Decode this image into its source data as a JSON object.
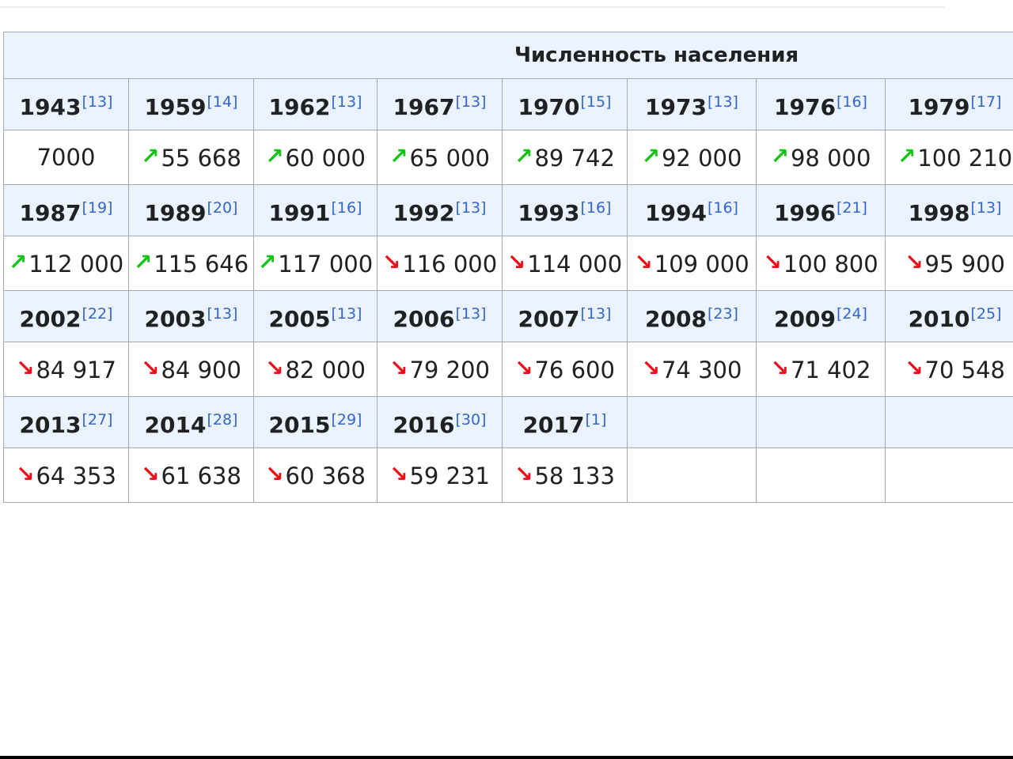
{
  "table_title": "Численность населения",
  "colors": {
    "up": "#14c414",
    "down": "#e8101b",
    "header_bg": "#eaf3ff",
    "ref": "#3366cc"
  },
  "rows": [
    {
      "years": [
        {
          "year": "1943",
          "ref": "[13]"
        },
        {
          "year": "1959",
          "ref": "[14]"
        },
        {
          "year": "1962",
          "ref": "[13]"
        },
        {
          "year": "1967",
          "ref": "[13]"
        },
        {
          "year": "1970",
          "ref": "[15]"
        },
        {
          "year": "1973",
          "ref": "[13]"
        },
        {
          "year": "1976",
          "ref": "[16]"
        },
        {
          "year": "1979",
          "ref": "[17]"
        }
      ],
      "values": [
        {
          "value": "7000",
          "trend": ""
        },
        {
          "value": "55 668",
          "trend": "up"
        },
        {
          "value": "60 000",
          "trend": "up"
        },
        {
          "value": "65 000",
          "trend": "up"
        },
        {
          "value": "89 742",
          "trend": "up"
        },
        {
          "value": "92 000",
          "trend": "up"
        },
        {
          "value": "98 000",
          "trend": "up"
        },
        {
          "value": "100 210",
          "trend": "up"
        }
      ]
    },
    {
      "years": [
        {
          "year": "1987",
          "ref": "[19]"
        },
        {
          "year": "1989",
          "ref": "[20]"
        },
        {
          "year": "1991",
          "ref": "[16]"
        },
        {
          "year": "1992",
          "ref": "[13]"
        },
        {
          "year": "1993",
          "ref": "[16]"
        },
        {
          "year": "1994",
          "ref": "[16]"
        },
        {
          "year": "1996",
          "ref": "[21]"
        },
        {
          "year": "1998",
          "ref": "[13]"
        }
      ],
      "values": [
        {
          "value": "112 000",
          "trend": "up"
        },
        {
          "value": "115 646",
          "trend": "up"
        },
        {
          "value": "117 000",
          "trend": "up"
        },
        {
          "value": "116 000",
          "trend": "down"
        },
        {
          "value": "114 000",
          "trend": "down"
        },
        {
          "value": "109 000",
          "trend": "down"
        },
        {
          "value": "100 800",
          "trend": "down"
        },
        {
          "value": "95 900",
          "trend": "down"
        }
      ]
    },
    {
      "years": [
        {
          "year": "2002",
          "ref": "[22]"
        },
        {
          "year": "2003",
          "ref": "[13]"
        },
        {
          "year": "2005",
          "ref": "[13]"
        },
        {
          "year": "2006",
          "ref": "[13]"
        },
        {
          "year": "2007",
          "ref": "[13]"
        },
        {
          "year": "2008",
          "ref": "[23]"
        },
        {
          "year": "2009",
          "ref": "[24]"
        },
        {
          "year": "2010",
          "ref": "[25]"
        }
      ],
      "values": [
        {
          "value": "84 917",
          "trend": "down"
        },
        {
          "value": "84 900",
          "trend": "down"
        },
        {
          "value": "82 000",
          "trend": "down"
        },
        {
          "value": "79 200",
          "trend": "down"
        },
        {
          "value": "76 600",
          "trend": "down"
        },
        {
          "value": "74 300",
          "trend": "down"
        },
        {
          "value": "71 402",
          "trend": "down"
        },
        {
          "value": "70 548",
          "trend": "down"
        }
      ]
    },
    {
      "years": [
        {
          "year": "2013",
          "ref": "[27]"
        },
        {
          "year": "2014",
          "ref": "[28]"
        },
        {
          "year": "2015",
          "ref": "[29]"
        },
        {
          "year": "2016",
          "ref": "[30]"
        },
        {
          "year": "2017",
          "ref": "[1]"
        },
        {
          "year": "",
          "ref": ""
        },
        {
          "year": "",
          "ref": ""
        },
        {
          "year": "",
          "ref": ""
        }
      ],
      "values": [
        {
          "value": "64 353",
          "trend": "down"
        },
        {
          "value": "61 638",
          "trend": "down"
        },
        {
          "value": "60 368",
          "trend": "down"
        },
        {
          "value": "59 231",
          "trend": "down"
        },
        {
          "value": "58 133",
          "trend": "down"
        },
        {
          "value": "",
          "trend": ""
        },
        {
          "value": "",
          "trend": ""
        },
        {
          "value": "",
          "trend": ""
        }
      ]
    }
  ]
}
